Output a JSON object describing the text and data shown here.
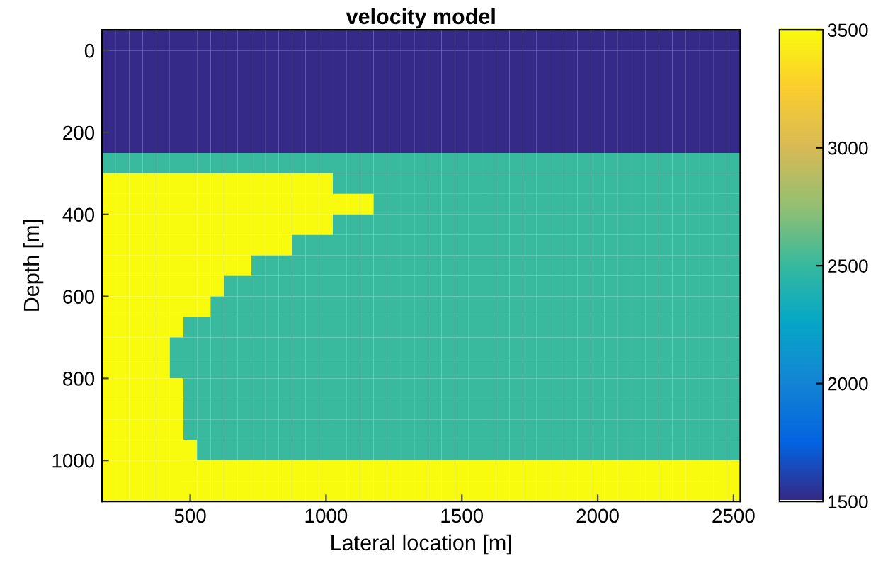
{
  "chart_data": {
    "type": "heatmap",
    "title": "velocity model",
    "xlabel": "Lateral location [m]",
    "ylabel": "Depth [m]",
    "x": [
      200,
      250,
      300,
      350,
      400,
      450,
      500,
      550,
      600,
      650,
      700,
      750,
      800,
      850,
      900,
      950,
      1000,
      1050,
      1100,
      1150,
      1200,
      1250,
      1300,
      1350,
      1400,
      1450,
      1500,
      1550,
      1600,
      1650,
      1700,
      1750,
      1800,
      1850,
      1900,
      1950,
      2000,
      2050,
      2100,
      2150,
      2200,
      2250,
      2300,
      2350,
      2400,
      2450,
      2500
    ],
    "y": [
      -25,
      25,
      75,
      125,
      175,
      225,
      275,
      325,
      375,
      425,
      475,
      525,
      575,
      625,
      675,
      725,
      775,
      825,
      875,
      925,
      975,
      1025,
      1075
    ],
    "xlim": [
      175,
      2525
    ],
    "xticks": [
      500,
      1000,
      1500,
      2000,
      2500
    ],
    "ylim": [
      1100,
      -50
    ],
    "yticks": [
      0,
      200,
      400,
      600,
      800,
      1000
    ],
    "clim": [
      1500,
      3500
    ],
    "cticks": [
      1500,
      2000,
      2500,
      3000,
      3500
    ],
    "grid": false,
    "cells": [
      [
        1500,
        1500,
        1500,
        1500,
        1500,
        1500,
        1500,
        1500,
        1500,
        1500,
        1500,
        1500,
        1500,
        1500,
        1500,
        1500,
        1500,
        1500,
        1500,
        1500,
        1500,
        1500,
        1500,
        1500,
        1500,
        1500,
        1500,
        1500,
        1500,
        1500,
        1500,
        1500,
        1500,
        1500,
        1500,
        1500,
        1500,
        1500,
        1500,
        1500,
        1500,
        1500,
        1500,
        1500,
        1500,
        1500,
        1500
      ],
      [
        1500,
        1500,
        1500,
        1500,
        1500,
        1500,
        1500,
        1500,
        1500,
        1500,
        1500,
        1500,
        1500,
        1500,
        1500,
        1500,
        1500,
        1500,
        1500,
        1500,
        1500,
        1500,
        1500,
        1500,
        1500,
        1500,
        1500,
        1500,
        1500,
        1500,
        1500,
        1500,
        1500,
        1500,
        1500,
        1500,
        1500,
        1500,
        1500,
        1500,
        1500,
        1500,
        1500,
        1500,
        1500,
        1500,
        1500
      ],
      [
        1500,
        1500,
        1500,
        1500,
        1500,
        1500,
        1500,
        1500,
        1500,
        1500,
        1500,
        1500,
        1500,
        1500,
        1500,
        1500,
        1500,
        1500,
        1500,
        1500,
        1500,
        1500,
        1500,
        1500,
        1500,
        1500,
        1500,
        1500,
        1500,
        1500,
        1500,
        1500,
        1500,
        1500,
        1500,
        1500,
        1500,
        1500,
        1500,
        1500,
        1500,
        1500,
        1500,
        1500,
        1500,
        1500,
        1500
      ],
      [
        1500,
        1500,
        1500,
        1500,
        1500,
        1500,
        1500,
        1500,
        1500,
        1500,
        1500,
        1500,
        1500,
        1500,
        1500,
        1500,
        1500,
        1500,
        1500,
        1500,
        1500,
        1500,
        1500,
        1500,
        1500,
        1500,
        1500,
        1500,
        1500,
        1500,
        1500,
        1500,
        1500,
        1500,
        1500,
        1500,
        1500,
        1500,
        1500,
        1500,
        1500,
        1500,
        1500,
        1500,
        1500,
        1500,
        1500
      ],
      [
        1500,
        1500,
        1500,
        1500,
        1500,
        1500,
        1500,
        1500,
        1500,
        1500,
        1500,
        1500,
        1500,
        1500,
        1500,
        1500,
        1500,
        1500,
        1500,
        1500,
        1500,
        1500,
        1500,
        1500,
        1500,
        1500,
        1500,
        1500,
        1500,
        1500,
        1500,
        1500,
        1500,
        1500,
        1500,
        1500,
        1500,
        1500,
        1500,
        1500,
        1500,
        1500,
        1500,
        1500,
        1500,
        1500,
        1500
      ],
      [
        1500,
        1500,
        1500,
        1500,
        1500,
        1500,
        1500,
        1500,
        1500,
        1500,
        1500,
        1500,
        1500,
        1500,
        1500,
        1500,
        1500,
        1500,
        1500,
        1500,
        1500,
        1500,
        1500,
        1500,
        1500,
        1500,
        1500,
        1500,
        1500,
        1500,
        1500,
        1500,
        1500,
        1500,
        1500,
        1500,
        1500,
        1500,
        1500,
        1500,
        1500,
        1500,
        1500,
        1500,
        1500,
        1500,
        1500
      ],
      [
        2500,
        2500,
        2500,
        2500,
        2500,
        2500,
        2500,
        2500,
        2500,
        2500,
        2500,
        2500,
        2500,
        2500,
        2500,
        2500,
        2500,
        2500,
        2500,
        2500,
        2500,
        2500,
        2500,
        2500,
        2500,
        2500,
        2500,
        2500,
        2500,
        2500,
        2500,
        2500,
        2500,
        2500,
        2500,
        2500,
        2500,
        2500,
        2500,
        2500,
        2500,
        2500,
        2500,
        2500,
        2500,
        2500,
        2500
      ],
      [
        3500,
        3500,
        3500,
        3500,
        3500,
        3500,
        3500,
        3500,
        3500,
        3500,
        3500,
        3500,
        3500,
        3500,
        3500,
        3500,
        3500,
        2500,
        2500,
        2500,
        2500,
        2500,
        2500,
        2500,
        2500,
        2500,
        2500,
        2500,
        2500,
        2500,
        2500,
        2500,
        2500,
        2500,
        2500,
        2500,
        2500,
        2500,
        2500,
        2500,
        2500,
        2500,
        2500,
        2500,
        2500,
        2500,
        2500
      ],
      [
        3500,
        3500,
        3500,
        3500,
        3500,
        3500,
        3500,
        3500,
        3500,
        3500,
        3500,
        3500,
        3500,
        3500,
        3500,
        3500,
        3500,
        3500,
        3500,
        3500,
        2500,
        2500,
        2500,
        2500,
        2500,
        2500,
        2500,
        2500,
        2500,
        2500,
        2500,
        2500,
        2500,
        2500,
        2500,
        2500,
        2500,
        2500,
        2500,
        2500,
        2500,
        2500,
        2500,
        2500,
        2500,
        2500,
        2500
      ],
      [
        3500,
        3500,
        3500,
        3500,
        3500,
        3500,
        3500,
        3500,
        3500,
        3500,
        3500,
        3500,
        3500,
        3500,
        3500,
        3500,
        3500,
        2500,
        2500,
        2500,
        2500,
        2500,
        2500,
        2500,
        2500,
        2500,
        2500,
        2500,
        2500,
        2500,
        2500,
        2500,
        2500,
        2500,
        2500,
        2500,
        2500,
        2500,
        2500,
        2500,
        2500,
        2500,
        2500,
        2500,
        2500,
        2500,
        2500
      ],
      [
        3500,
        3500,
        3500,
        3500,
        3500,
        3500,
        3500,
        3500,
        3500,
        3500,
        3500,
        3500,
        3500,
        3500,
        2500,
        2500,
        2500,
        2500,
        2500,
        2500,
        2500,
        2500,
        2500,
        2500,
        2500,
        2500,
        2500,
        2500,
        2500,
        2500,
        2500,
        2500,
        2500,
        2500,
        2500,
        2500,
        2500,
        2500,
        2500,
        2500,
        2500,
        2500,
        2500,
        2500,
        2500,
        2500,
        2500
      ],
      [
        3500,
        3500,
        3500,
        3500,
        3500,
        3500,
        3500,
        3500,
        3500,
        3500,
        3500,
        2500,
        2500,
        2500,
        2500,
        2500,
        2500,
        2500,
        2500,
        2500,
        2500,
        2500,
        2500,
        2500,
        2500,
        2500,
        2500,
        2500,
        2500,
        2500,
        2500,
        2500,
        2500,
        2500,
        2500,
        2500,
        2500,
        2500,
        2500,
        2500,
        2500,
        2500,
        2500,
        2500,
        2500,
        2500,
        2500
      ],
      [
        3500,
        3500,
        3500,
        3500,
        3500,
        3500,
        3500,
        3500,
        3500,
        2500,
        2500,
        2500,
        2500,
        2500,
        2500,
        2500,
        2500,
        2500,
        2500,
        2500,
        2500,
        2500,
        2500,
        2500,
        2500,
        2500,
        2500,
        2500,
        2500,
        2500,
        2500,
        2500,
        2500,
        2500,
        2500,
        2500,
        2500,
        2500,
        2500,
        2500,
        2500,
        2500,
        2500,
        2500,
        2500,
        2500,
        2500
      ],
      [
        3500,
        3500,
        3500,
        3500,
        3500,
        3500,
        3500,
        3500,
        2500,
        2500,
        2500,
        2500,
        2500,
        2500,
        2500,
        2500,
        2500,
        2500,
        2500,
        2500,
        2500,
        2500,
        2500,
        2500,
        2500,
        2500,
        2500,
        2500,
        2500,
        2500,
        2500,
        2500,
        2500,
        2500,
        2500,
        2500,
        2500,
        2500,
        2500,
        2500,
        2500,
        2500,
        2500,
        2500,
        2500,
        2500,
        2500
      ],
      [
        3500,
        3500,
        3500,
        3500,
        3500,
        3500,
        2500,
        2500,
        2500,
        2500,
        2500,
        2500,
        2500,
        2500,
        2500,
        2500,
        2500,
        2500,
        2500,
        2500,
        2500,
        2500,
        2500,
        2500,
        2500,
        2500,
        2500,
        2500,
        2500,
        2500,
        2500,
        2500,
        2500,
        2500,
        2500,
        2500,
        2500,
        2500,
        2500,
        2500,
        2500,
        2500,
        2500,
        2500,
        2500,
        2500,
        2500
      ],
      [
        3500,
        3500,
        3500,
        3500,
        3500,
        2500,
        2500,
        2500,
        2500,
        2500,
        2500,
        2500,
        2500,
        2500,
        2500,
        2500,
        2500,
        2500,
        2500,
        2500,
        2500,
        2500,
        2500,
        2500,
        2500,
        2500,
        2500,
        2500,
        2500,
        2500,
        2500,
        2500,
        2500,
        2500,
        2500,
        2500,
        2500,
        2500,
        2500,
        2500,
        2500,
        2500,
        2500,
        2500,
        2500,
        2500,
        2500
      ],
      [
        3500,
        3500,
        3500,
        3500,
        3500,
        2500,
        2500,
        2500,
        2500,
        2500,
        2500,
        2500,
        2500,
        2500,
        2500,
        2500,
        2500,
        2500,
        2500,
        2500,
        2500,
        2500,
        2500,
        2500,
        2500,
        2500,
        2500,
        2500,
        2500,
        2500,
        2500,
        2500,
        2500,
        2500,
        2500,
        2500,
        2500,
        2500,
        2500,
        2500,
        2500,
        2500,
        2500,
        2500,
        2500,
        2500,
        2500
      ],
      [
        3500,
        3500,
        3500,
        3500,
        3500,
        3500,
        2500,
        2500,
        2500,
        2500,
        2500,
        2500,
        2500,
        2500,
        2500,
        2500,
        2500,
        2500,
        2500,
        2500,
        2500,
        2500,
        2500,
        2500,
        2500,
        2500,
        2500,
        2500,
        2500,
        2500,
        2500,
        2500,
        2500,
        2500,
        2500,
        2500,
        2500,
        2500,
        2500,
        2500,
        2500,
        2500,
        2500,
        2500,
        2500,
        2500,
        2500
      ],
      [
        3500,
        3500,
        3500,
        3500,
        3500,
        3500,
        2500,
        2500,
        2500,
        2500,
        2500,
        2500,
        2500,
        2500,
        2500,
        2500,
        2500,
        2500,
        2500,
        2500,
        2500,
        2500,
        2500,
        2500,
        2500,
        2500,
        2500,
        2500,
        2500,
        2500,
        2500,
        2500,
        2500,
        2500,
        2500,
        2500,
        2500,
        2500,
        2500,
        2500,
        2500,
        2500,
        2500,
        2500,
        2500,
        2500,
        2500
      ],
      [
        3500,
        3500,
        3500,
        3500,
        3500,
        3500,
        2500,
        2500,
        2500,
        2500,
        2500,
        2500,
        2500,
        2500,
        2500,
        2500,
        2500,
        2500,
        2500,
        2500,
        2500,
        2500,
        2500,
        2500,
        2500,
        2500,
        2500,
        2500,
        2500,
        2500,
        2500,
        2500,
        2500,
        2500,
        2500,
        2500,
        2500,
        2500,
        2500,
        2500,
        2500,
        2500,
        2500,
        2500,
        2500,
        2500,
        2500
      ],
      [
        3500,
        3500,
        3500,
        3500,
        3500,
        3500,
        3500,
        2500,
        2500,
        2500,
        2500,
        2500,
        2500,
        2500,
        2500,
        2500,
        2500,
        2500,
        2500,
        2500,
        2500,
        2500,
        2500,
        2500,
        2500,
        2500,
        2500,
        2500,
        2500,
        2500,
        2500,
        2500,
        2500,
        2500,
        2500,
        2500,
        2500,
        2500,
        2500,
        2500,
        2500,
        2500,
        2500,
        2500,
        2500,
        2500,
        2500
      ],
      [
        3500,
        3500,
        3500,
        3500,
        3500,
        3500,
        3500,
        3500,
        3500,
        3500,
        3500,
        3500,
        3500,
        3500,
        3500,
        3500,
        3500,
        3500,
        3500,
        3500,
        3500,
        3500,
        3500,
        3500,
        3500,
        3500,
        3500,
        3500,
        3500,
        3500,
        3500,
        3500,
        3500,
        3500,
        3500,
        3500,
        3500,
        3500,
        3500,
        3500,
        3500,
        3500,
        3500,
        3500,
        3500,
        3500,
        3500
      ],
      [
        3500,
        3500,
        3500,
        3500,
        3500,
        3500,
        3500,
        3500,
        3500,
        3500,
        3500,
        3500,
        3500,
        3500,
        3500,
        3500,
        3500,
        3500,
        3500,
        3500,
        3500,
        3500,
        3500,
        3500,
        3500,
        3500,
        3500,
        3500,
        3500,
        3500,
        3500,
        3500,
        3500,
        3500,
        3500,
        3500,
        3500,
        3500,
        3500,
        3500,
        3500,
        3500,
        3500,
        3500,
        3500,
        3500,
        3500
      ]
    ]
  }
}
